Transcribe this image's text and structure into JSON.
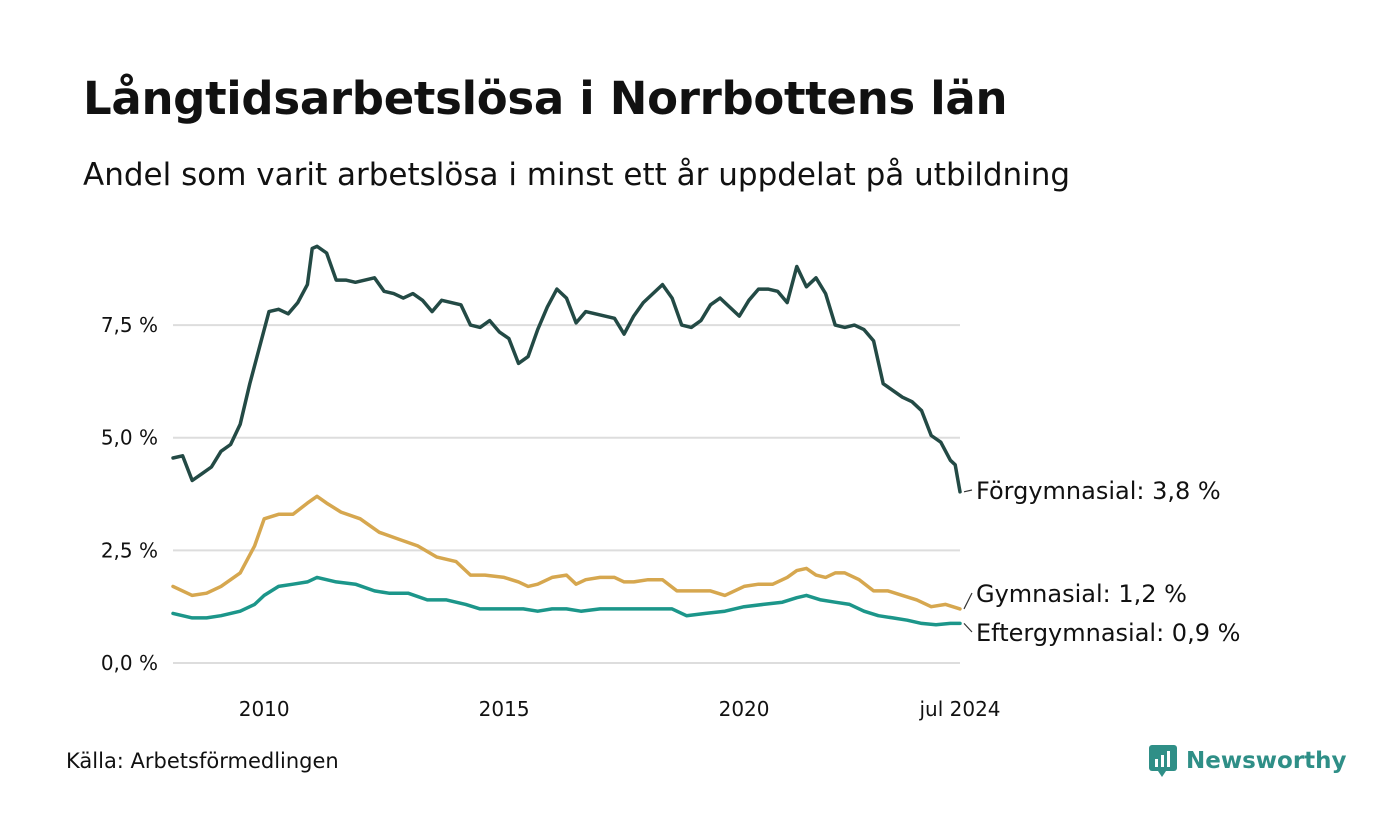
{
  "header": {
    "title": "Långtidsarbetslösa i Norrbottens län",
    "subtitle": "Andel som varit arbetslösa i minst ett år uppdelat på utbildning"
  },
  "footer": {
    "source": "Källa: Arbetsförmedlingen",
    "brand": "Newsworthy",
    "brand_icon": "newsworthy-logo-icon"
  },
  "colors": {
    "forgymnasial": "#234a45",
    "gymnasial": "#d6a74f",
    "eftergymnasial": "#1c968a",
    "grid": "#dddddd",
    "brand": "#2f8f87"
  },
  "chart_data": {
    "type": "line",
    "title": "Långtidsarbetslösa i Norrbottens län",
    "xlabel": "",
    "ylabel": "",
    "xlim": [
      2008.1,
      2024.5
    ],
    "ylim": [
      0,
      9.5
    ],
    "y_ticks": [
      0,
      2.5,
      5,
      7.5
    ],
    "y_tick_labels": [
      "0,0 %",
      "2,5 %",
      "5,0 %",
      "7,5 %"
    ],
    "x_ticks": [
      2010,
      2015,
      2020,
      2024.5
    ],
    "x_tick_labels": [
      "2010",
      "2015",
      "2020",
      "jul 2024"
    ],
    "series": [
      {
        "name": "Förgymnasial",
        "label": "Förgymnasial: 3,8 %",
        "color_key": "forgymnasial",
        "x": [
          2008.1,
          2008.3,
          2008.5,
          2008.7,
          2008.9,
          2009.1,
          2009.3,
          2009.5,
          2009.7,
          2009.9,
          2010.1,
          2010.3,
          2010.5,
          2010.7,
          2010.9,
          2011.0,
          2011.1,
          2011.3,
          2011.5,
          2011.7,
          2011.9,
          2012.1,
          2012.3,
          2012.5,
          2012.7,
          2012.9,
          2013.1,
          2013.3,
          2013.5,
          2013.7,
          2013.9,
          2014.1,
          2014.3,
          2014.5,
          2014.7,
          2014.9,
          2015.1,
          2015.3,
          2015.5,
          2015.7,
          2015.9,
          2016.1,
          2016.3,
          2016.5,
          2016.7,
          2016.9,
          2017.1,
          2017.3,
          2017.5,
          2017.7,
          2017.9,
          2018.1,
          2018.3,
          2018.5,
          2018.7,
          2018.9,
          2019.1,
          2019.3,
          2019.5,
          2019.7,
          2019.9,
          2020.1,
          2020.3,
          2020.5,
          2020.7,
          2020.9,
          2021.1,
          2021.3,
          2021.5,
          2021.7,
          2021.9,
          2022.1,
          2022.3,
          2022.5,
          2022.7,
          2022.9,
          2023.1,
          2023.3,
          2023.5,
          2023.7,
          2023.9,
          2024.1,
          2024.3,
          2024.4,
          2024.5
        ],
        "values": [
          4.55,
          4.6,
          4.05,
          4.2,
          4.35,
          4.7,
          4.85,
          5.3,
          6.2,
          7.0,
          7.8,
          7.85,
          7.75,
          8.0,
          8.4,
          9.2,
          9.25,
          9.1,
          8.5,
          8.5,
          8.45,
          8.5,
          8.55,
          8.25,
          8.2,
          8.1,
          8.2,
          8.05,
          7.8,
          8.05,
          8.0,
          7.95,
          7.5,
          7.45,
          7.6,
          7.35,
          7.2,
          6.65,
          6.8,
          7.4,
          7.9,
          8.3,
          8.1,
          7.55,
          7.8,
          7.75,
          7.7,
          7.65,
          7.3,
          7.7,
          8.0,
          8.2,
          8.4,
          8.1,
          7.5,
          7.45,
          7.6,
          7.95,
          8.1,
          7.9,
          7.7,
          8.05,
          8.3,
          8.3,
          8.25,
          8.0,
          8.8,
          8.35,
          8.55,
          8.2,
          7.5,
          7.45,
          7.5,
          7.4,
          7.15,
          6.2,
          6.05,
          5.9,
          5.8,
          5.6,
          5.05,
          4.9,
          4.5,
          4.4,
          3.8
        ]
      },
      {
        "name": "Gymnasial",
        "label": "Gymnasial: 1,2 %",
        "color_key": "gymnasial",
        "x": [
          2008.1,
          2008.5,
          2008.8,
          2009.1,
          2009.5,
          2009.8,
          2010.0,
          2010.3,
          2010.6,
          2010.9,
          2011.1,
          2011.3,
          2011.6,
          2012.0,
          2012.4,
          2012.8,
          2013.2,
          2013.6,
          2014.0,
          2014.3,
          2014.6,
          2015.0,
          2015.3,
          2015.5,
          2015.7,
          2016.0,
          2016.3,
          2016.5,
          2016.7,
          2017.0,
          2017.3,
          2017.5,
          2017.7,
          2018.0,
          2018.3,
          2018.6,
          2019.0,
          2019.3,
          2019.6,
          2020.0,
          2020.3,
          2020.6,
          2020.9,
          2021.1,
          2021.3,
          2021.5,
          2021.7,
          2021.9,
          2022.1,
          2022.4,
          2022.7,
          2023.0,
          2023.3,
          2023.6,
          2023.9,
          2024.2,
          2024.5
        ],
        "values": [
          1.7,
          1.5,
          1.55,
          1.7,
          2.0,
          2.6,
          3.2,
          3.3,
          3.3,
          3.55,
          3.7,
          3.55,
          3.35,
          3.2,
          2.9,
          2.75,
          2.6,
          2.35,
          2.25,
          1.95,
          1.95,
          1.9,
          1.8,
          1.7,
          1.75,
          1.9,
          1.95,
          1.75,
          1.85,
          1.9,
          1.9,
          1.8,
          1.8,
          1.85,
          1.85,
          1.6,
          1.6,
          1.6,
          1.5,
          1.7,
          1.75,
          1.75,
          1.9,
          2.05,
          2.1,
          1.95,
          1.9,
          2.0,
          2.0,
          1.85,
          1.6,
          1.6,
          1.5,
          1.4,
          1.25,
          1.3,
          1.2
        ]
      },
      {
        "name": "Eftergymnasial",
        "label": "Eftergymnasial: 0,9 %",
        "color_key": "eftergymnasial",
        "x": [
          2008.1,
          2008.5,
          2008.8,
          2009.1,
          2009.5,
          2009.8,
          2010.0,
          2010.3,
          2010.6,
          2010.9,
          2011.1,
          2011.5,
          2011.9,
          2012.3,
          2012.6,
          2013.0,
          2013.4,
          2013.8,
          2014.2,
          2014.5,
          2014.8,
          2015.1,
          2015.4,
          2015.7,
          2016.0,
          2016.3,
          2016.6,
          2017.0,
          2017.4,
          2017.8,
          2018.2,
          2018.5,
          2018.8,
          2019.2,
          2019.6,
          2020.0,
          2020.4,
          2020.8,
          2021.1,
          2021.3,
          2021.6,
          2021.9,
          2022.2,
          2022.5,
          2022.8,
          2023.1,
          2023.4,
          2023.7,
          2024.0,
          2024.3,
          2024.5
        ],
        "values": [
          1.1,
          1.0,
          1.0,
          1.05,
          1.15,
          1.3,
          1.5,
          1.7,
          1.75,
          1.8,
          1.9,
          1.8,
          1.75,
          1.6,
          1.55,
          1.55,
          1.4,
          1.4,
          1.3,
          1.2,
          1.2,
          1.2,
          1.2,
          1.15,
          1.2,
          1.2,
          1.15,
          1.2,
          1.2,
          1.2,
          1.2,
          1.2,
          1.05,
          1.1,
          1.15,
          1.25,
          1.3,
          1.35,
          1.45,
          1.5,
          1.4,
          1.35,
          1.3,
          1.15,
          1.05,
          1.0,
          0.95,
          0.88,
          0.85,
          0.88,
          0.88
        ]
      }
    ]
  }
}
